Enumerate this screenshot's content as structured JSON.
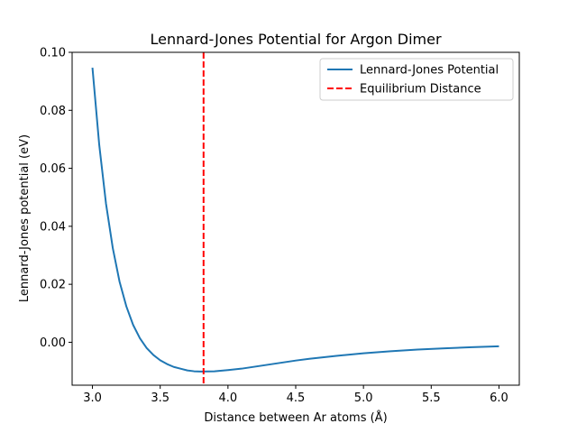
{
  "chart_data": {
    "type": "line",
    "title": "Lennard-Jones Potential for Argon Dimer",
    "xlabel": "Distance between Ar atoms (Å)",
    "ylabel": "Lennard-Jones potential (eV)",
    "xlim": [
      2.85,
      6.15
    ],
    "ylim": [
      -0.0148,
      0.1
    ],
    "xticks": [
      3.0,
      3.5,
      4.0,
      4.5,
      5.0,
      5.5,
      6.0
    ],
    "xtick_labels": [
      "3.0",
      "3.5",
      "4.0",
      "4.5",
      "5.0",
      "5.5",
      "6.0"
    ],
    "yticks": [
      0.0,
      0.02,
      0.04,
      0.06,
      0.08,
      0.1
    ],
    "ytick_labels": [
      "0.00",
      "0.02",
      "0.04",
      "0.06",
      "0.08",
      "0.10"
    ],
    "grid": false,
    "legend_position": "top-right",
    "series": [
      {
        "name": "Lennard-Jones Potential",
        "color": "#1f77b4",
        "style": "solid",
        "x": [
          3.0,
          3.05,
          3.1,
          3.15,
          3.2,
          3.25,
          3.3,
          3.35,
          3.4,
          3.45,
          3.5,
          3.55,
          3.6,
          3.65,
          3.7,
          3.75,
          3.8,
          3.9,
          4.0,
          4.1,
          4.2,
          4.3,
          4.4,
          4.5,
          4.6,
          4.8,
          5.0,
          5.2,
          5.4,
          5.6,
          5.8,
          6.0
        ],
        "values": [
          0.0947,
          0.0681,
          0.0478,
          0.0325,
          0.0209,
          0.0124,
          0.006,
          0.0014,
          -0.002,
          -0.0044,
          -0.0062,
          -0.0075,
          -0.0085,
          -0.0091,
          -0.0097,
          -0.01,
          -0.0101,
          -0.01,
          -0.0096,
          -0.0091,
          -0.0084,
          -0.0077,
          -0.007,
          -0.0063,
          -0.0057,
          -0.0047,
          -0.0038,
          -0.0031,
          -0.0025,
          -0.0021,
          -0.0017,
          -0.0014
        ]
      },
      {
        "name": "Equilibrium Distance",
        "color": "#ff0000",
        "style": "dashed",
        "kind": "vline",
        "x": 3.82
      }
    ]
  }
}
